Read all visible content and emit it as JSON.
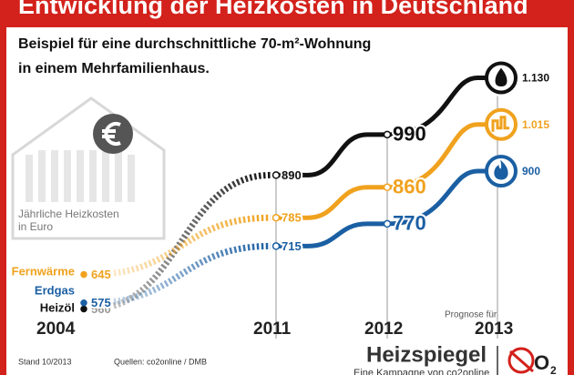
{
  "chart_data": {
    "type": "line",
    "title": "Entwicklung der Heizkosten in Deutschland",
    "subtitle": [
      "Beispiel für eine durchschnittliche 70-m²-Wohnung",
      "in einem Mehrfamilienhaus."
    ],
    "y_label": [
      "Jährliche Heizkosten",
      "in Euro"
    ],
    "categories": [
      "2004",
      "2011",
      "2012",
      "2013"
    ],
    "forecast_note": "Prognose für",
    "series": [
      {
        "name": "Heizöl",
        "color": "#111111",
        "values": [
          560,
          890,
          990,
          1130
        ],
        "value_labels": [
          "560",
          "890",
          "990",
          "1.130"
        ]
      },
      {
        "name": "Fernwärme",
        "color": "#f0a21e",
        "values": [
          645,
          785,
          860,
          1015
        ],
        "value_labels": [
          "645",
          "785",
          "860",
          "1.015"
        ]
      },
      {
        "name": "Erdgas",
        "color": "#1b5fa3",
        "values": [
          575,
          715,
          770,
          900
        ]
      }
    ],
    "note": "Stand 10/2013",
    "source": "Quellen: co2online / DMB",
    "brand": "Heizspiegel",
    "brand_tagline": "Eine Kampagne von co2online"
  }
}
